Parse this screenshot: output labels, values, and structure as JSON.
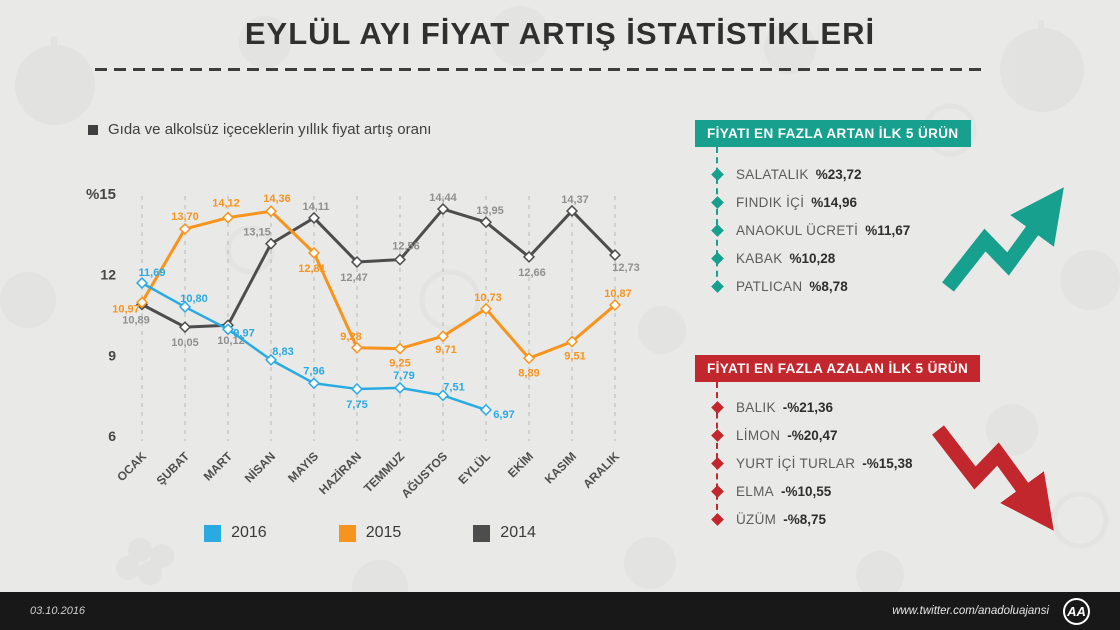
{
  "title": "EYLÜL AYI FİYAT ARTIŞ İSTATİSTİKLERİ",
  "chart_note": "Gıda ve alkolsüz içeceklerin yıllık fiyat artış oranı",
  "chart_data": {
    "type": "line",
    "title": "Gıda ve alkolsüz içeceklerin yıllık fiyat artış oranı",
    "categories": [
      "OCAK",
      "ŞUBAT",
      "MART",
      "NİSAN",
      "MAYIS",
      "HAZİRAN",
      "TEMMUZ",
      "AĞUSTOS",
      "EYLÜL",
      "EKİM",
      "KASIM",
      "ARALIK"
    ],
    "y_ticks": [
      "%15",
      "12",
      "9",
      "6"
    ],
    "ylim": [
      6,
      15
    ],
    "grid": "dashed-vertical",
    "legend_position": "bottom",
    "series": [
      {
        "name": "2016",
        "color": "#29abe2",
        "label_color": "#29abe2",
        "values": [
          11.69,
          10.8,
          9.97,
          8.83,
          7.96,
          7.75,
          7.79,
          7.51,
          6.97
        ]
      },
      {
        "name": "2015",
        "color": "#f7941d",
        "label_color": "#f7941d",
        "values": [
          10.97,
          13.7,
          14.12,
          14.36,
          12.81,
          9.28,
          9.25,
          9.71,
          10.73,
          8.89,
          9.51,
          10.87
        ]
      },
      {
        "name": "2014",
        "color": "#4d4d4d",
        "label_color": "#8f8f8f",
        "values": [
          10.89,
          10.05,
          10.12,
          13.15,
          14.11,
          12.47,
          12.56,
          14.44,
          13.95,
          12.66,
          14.37,
          12.73
        ]
      }
    ]
  },
  "panels": {
    "increase": {
      "header": "FİYATI EN FAZLA ARTAN İLK 5 ÜRÜN",
      "accent": "#17a08d",
      "items": [
        {
          "name": "SALATALIK",
          "value": "%23,72"
        },
        {
          "name": "FINDIK İÇİ",
          "value": "%14,96"
        },
        {
          "name": "ANAOKUL ÜCRETİ",
          "value": "%11,67"
        },
        {
          "name": "KABAK",
          "value": "%10,28"
        },
        {
          "name": "PATLICAN",
          "value": "%8,78"
        }
      ]
    },
    "decrease": {
      "header": "FİYATI EN FAZLA AZALAN İLK 5 ÜRÜN",
      "accent": "#c1272d",
      "items": [
        {
          "name": "BALIK",
          "value": "-%21,36"
        },
        {
          "name": "LİMON",
          "value": "-%20,47"
        },
        {
          "name": "YURT İÇİ TURLAR",
          "value": "-%15,38"
        },
        {
          "name": "ELMA",
          "value": "-%10,55"
        },
        {
          "name": "ÜZÜM",
          "value": "-%8,75"
        }
      ]
    }
  },
  "footer": {
    "date": "03.10.2016",
    "twitter": "www.twitter.com/anadoluajansi",
    "logo_text": "AA"
  }
}
